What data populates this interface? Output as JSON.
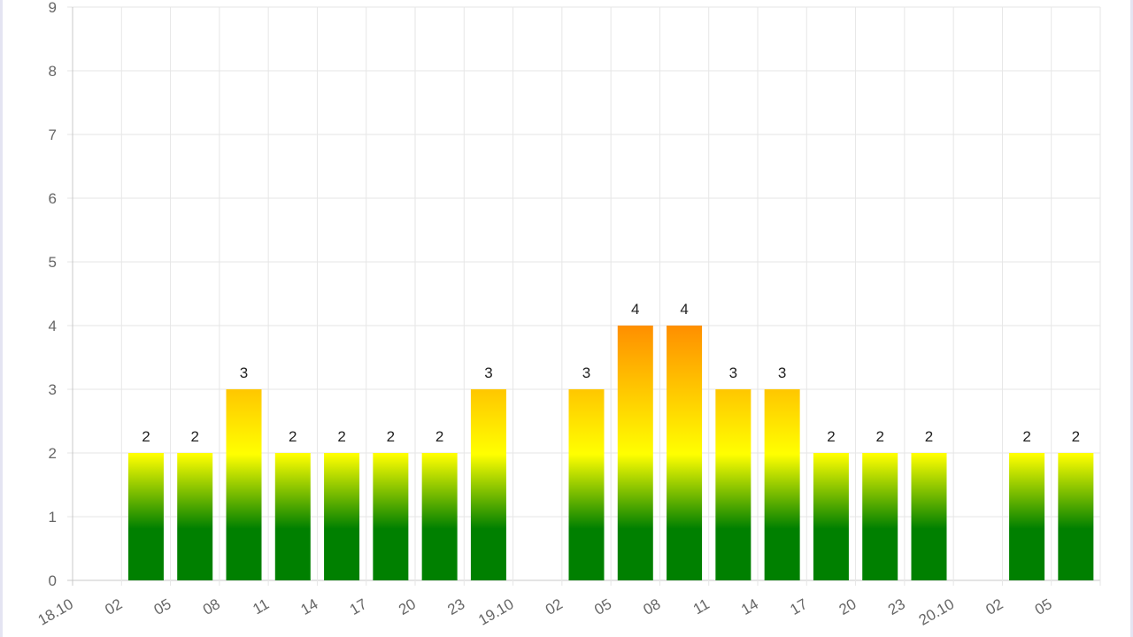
{
  "chart_data": {
    "type": "bar",
    "title": "",
    "xlabel": "",
    "ylabel": "",
    "ylim": [
      0,
      9
    ],
    "yticks": [
      "0",
      "1",
      "2",
      "3",
      "4",
      "5",
      "6",
      "7",
      "8",
      "9"
    ],
    "grid": true,
    "legend": "none",
    "categories": [
      "18.10",
      "02",
      "05",
      "08",
      "11",
      "14",
      "17",
      "20",
      "23",
      "19.10",
      "02",
      "05",
      "08",
      "11",
      "14",
      "17",
      "20",
      "23",
      "20.10",
      "02",
      "05"
    ],
    "values": [
      null,
      2,
      2,
      3,
      2,
      2,
      2,
      2,
      3,
      null,
      3,
      4,
      4,
      3,
      3,
      2,
      2,
      2,
      null,
      2,
      2
    ],
    "color_scale": {
      "low": "#008000",
      "mid": "#ffff00",
      "high": "#ff8c00"
    }
  }
}
